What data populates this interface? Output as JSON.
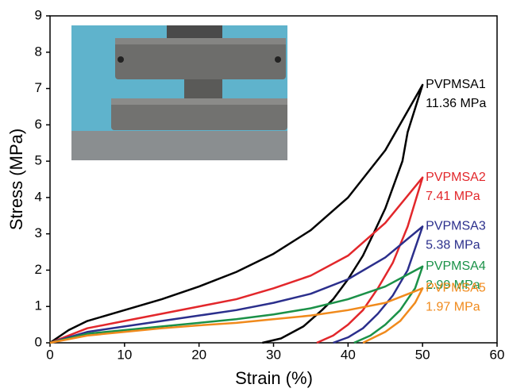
{
  "chart_data": {
    "type": "line",
    "xlabel": "Strain (%)",
    "ylabel": "Stress (MPa)",
    "xlim": [
      0,
      60
    ],
    "xticks": [
      0,
      10,
      20,
      30,
      40,
      50,
      60
    ],
    "ylim": [
      0,
      9
    ],
    "yticks": [
      0,
      1,
      2,
      3,
      4,
      5,
      6,
      7,
      8,
      9
    ],
    "series": [
      {
        "name": "PVPMSA1",
        "label": "11.36 MPa",
        "color": "#000000",
        "x": [
          0,
          2.5,
          5,
          10,
          15,
          20,
          25,
          30,
          35,
          40,
          45,
          50,
          48,
          47.3,
          45,
          43.4,
          42,
          40,
          38,
          36.5,
          34,
          31,
          28.5
        ],
        "y": [
          0,
          0.35,
          0.6,
          0.9,
          1.2,
          1.55,
          1.95,
          2.45,
          3.1,
          4.0,
          5.3,
          7.1,
          5.8,
          5.0,
          3.7,
          3.0,
          2.4,
          1.75,
          1.2,
          0.9,
          0.45,
          0.12,
          0
        ]
      },
      {
        "name": "PVPMSA2",
        "label": "7.41 MPa",
        "color": "#e2272b",
        "x": [
          0,
          5,
          10,
          15,
          20,
          25,
          30,
          35,
          40,
          45,
          50,
          48,
          46,
          44,
          42,
          40,
          38,
          35.8
        ],
        "y": [
          0,
          0.4,
          0.6,
          0.8,
          1.0,
          1.2,
          1.5,
          1.85,
          2.4,
          3.3,
          4.55,
          3.2,
          2.2,
          1.5,
          0.9,
          0.5,
          0.2,
          0
        ]
      },
      {
        "name": "PVPMSA3",
        "label": "5.38 MPa",
        "color": "#2b2f8c",
        "x": [
          0,
          5,
          10,
          15,
          20,
          25,
          30,
          35,
          40,
          45,
          50,
          48,
          46,
          44,
          42,
          40,
          38
        ],
        "y": [
          0,
          0.3,
          0.45,
          0.6,
          0.75,
          0.9,
          1.1,
          1.35,
          1.75,
          2.35,
          3.2,
          2.0,
          1.3,
          0.8,
          0.4,
          0.15,
          0
        ]
      },
      {
        "name": "PVPMSA4",
        "label": "2.99 MPa",
        "color": "#1b9148",
        "x": [
          0,
          5,
          10,
          15,
          20,
          25,
          30,
          35,
          40,
          45,
          50,
          49,
          47,
          45,
          43,
          40.8
        ],
        "y": [
          0,
          0.25,
          0.35,
          0.45,
          0.55,
          0.65,
          0.78,
          0.95,
          1.2,
          1.55,
          2.1,
          1.5,
          0.9,
          0.5,
          0.2,
          0
        ]
      },
      {
        "name": "PVPMSA5",
        "label": "1.97 MPa",
        "color": "#f08a1c",
        "x": [
          0,
          5,
          10,
          15,
          20,
          25,
          30,
          35,
          40,
          45,
          50,
          49,
          47,
          45,
          43,
          42
        ],
        "y": [
          0,
          0.2,
          0.3,
          0.4,
          0.48,
          0.55,
          0.65,
          0.75,
          0.9,
          1.1,
          1.5,
          1.1,
          0.6,
          0.3,
          0.1,
          0
        ]
      }
    ]
  }
}
